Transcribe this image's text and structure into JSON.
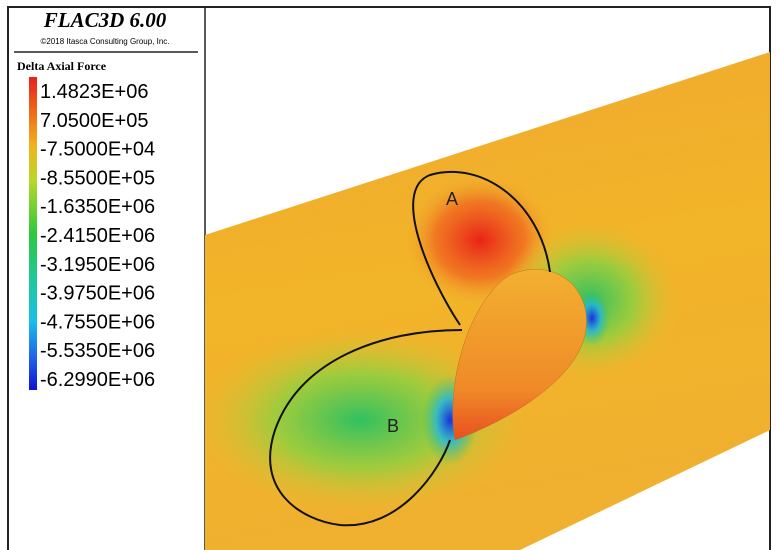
{
  "header": {
    "title": "FLAC3D 6.00",
    "copyright": "©2018 Itasca Consulting Group, Inc."
  },
  "legend": {
    "title": "Delta Axial Force",
    "labels": [
      "1.4823E+06",
      "7.0500E+05",
      "-7.5000E+04",
      "-8.5500E+05",
      "-1.6350E+06",
      "-2.4150E+06",
      "-3.1950E+06",
      "-3.9750E+06",
      "-4.7550E+06",
      "-5.5350E+06",
      "-6.2990E+06"
    ]
  },
  "annotations": [
    "A",
    "B"
  ]
}
